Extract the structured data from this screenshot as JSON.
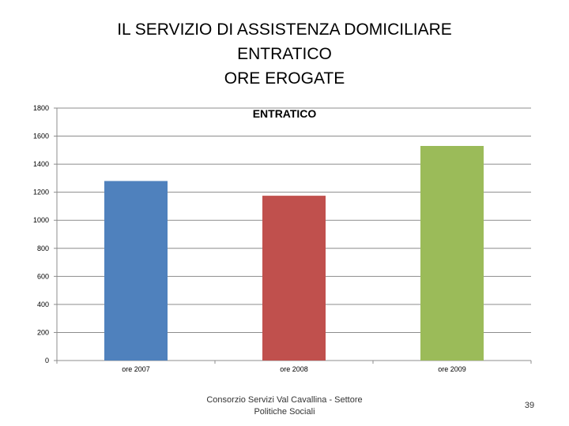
{
  "slide": {
    "title_lines": [
      "IL SERVIZIO DI ASSISTENZA DOMICILIARE",
      "ENTRATICO",
      "ORE EROGATE"
    ],
    "footer_source": "Consorzio Servizi Val Cavallina - Settore Politiche Sociali",
    "page_number": "39"
  },
  "chart_data": {
    "type": "bar",
    "title": "ENTRATICO",
    "categories": [
      "ore 2007",
      "ore 2008",
      "ore 2009"
    ],
    "values": [
      1280,
      1175,
      1530
    ],
    "bar_colors": [
      "#4f81bd",
      "#c0504d",
      "#9bbb59"
    ],
    "ylim": [
      0,
      1800
    ],
    "yticks": [
      0,
      200,
      400,
      600,
      800,
      1000,
      1200,
      1400,
      1600,
      1800
    ],
    "xlabel": "",
    "ylabel": "",
    "grid": true,
    "legend": false
  }
}
